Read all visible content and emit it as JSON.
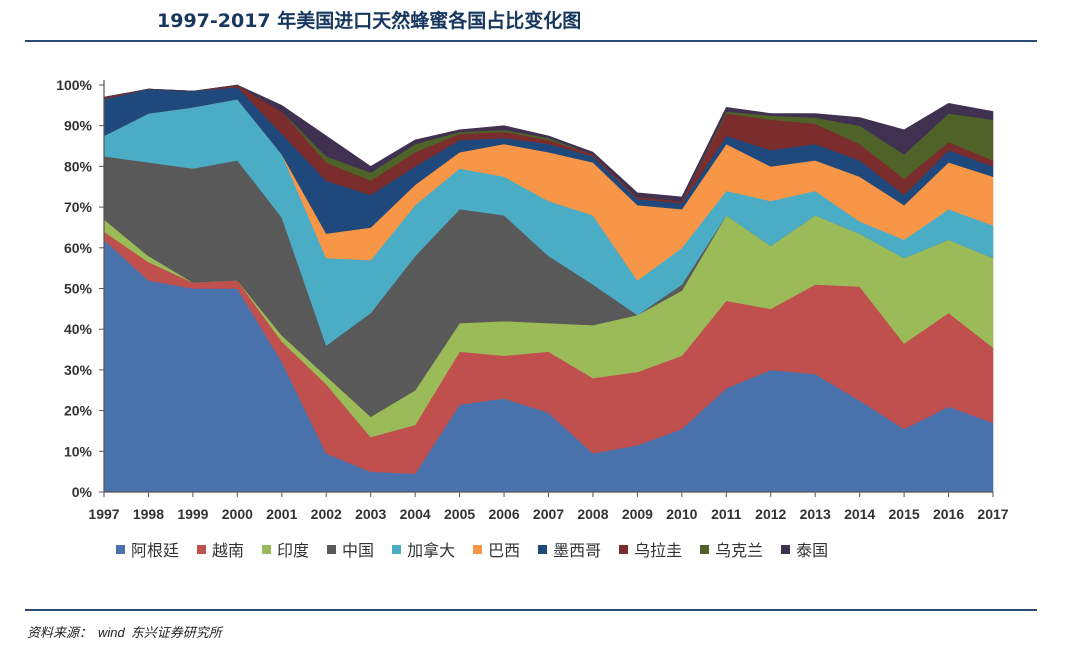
{
  "header": {
    "title": "1997-2017 年美国进口天然蜂蜜各国占比变化图"
  },
  "source": {
    "label": "资料来源：",
    "provider": "wind",
    "org": "东兴证券研究所"
  },
  "chart_data": {
    "type": "area",
    "stacked": true,
    "title": "1997-2017 年美国进口天然蜂蜜各国占比变化图",
    "xlabel": "",
    "ylabel": "",
    "ylim": [
      0,
      100
    ],
    "y_ticks": [
      "0%",
      "10%",
      "20%",
      "30%",
      "40%",
      "50%",
      "60%",
      "70%",
      "80%",
      "90%",
      "100%"
    ],
    "categories": [
      "1997",
      "1998",
      "1999",
      "2000",
      "2001",
      "2002",
      "2003",
      "2004",
      "2005",
      "2006",
      "2007",
      "2008",
      "2009",
      "2010",
      "2011",
      "2012",
      "2013",
      "2014",
      "2015",
      "2016",
      "2017"
    ],
    "legend_position": "bottom",
    "series": [
      {
        "name": "阿根廷",
        "color": "#4a72ad",
        "values": [
          62,
          52,
          50,
          50,
          32,
          9.5,
          5,
          4.5,
          21.5,
          23,
          19.5,
          9.5,
          11.5,
          15.5,
          25.5,
          30,
          29,
          22.5,
          15.5,
          21,
          17
        ]
      },
      {
        "name": "越南",
        "color": "#c0504d",
        "values": [
          2,
          4.5,
          1.5,
          2,
          5,
          17,
          8.5,
          12,
          13,
          10.5,
          15,
          18.5,
          18,
          18,
          21.5,
          15,
          22,
          28,
          21,
          23,
          18.5
        ]
      },
      {
        "name": "印度",
        "color": "#9bbb59",
        "values": [
          3,
          1.5,
          0,
          0,
          1.5,
          2,
          5,
          8.5,
          7,
          8.5,
          7,
          13,
          14,
          16,
          21,
          15.5,
          17,
          13,
          21,
          18,
          22
        ]
      },
      {
        "name": "中国",
        "color": "#595959",
        "values": [
          15.5,
          23,
          28,
          29.5,
          29,
          7.5,
          25.5,
          33,
          28,
          26,
          16.5,
          10,
          0,
          1.5,
          0,
          0,
          0,
          0,
          0,
          0,
          0
        ]
      },
      {
        "name": "加拿大",
        "color": "#4bacc6",
        "values": [
          5,
          12,
          15,
          15,
          15.5,
          21.5,
          13,
          12.5,
          10,
          9.5,
          13.5,
          17,
          8.5,
          9,
          6,
          11,
          6,
          3,
          4.5,
          7.5,
          8
        ]
      },
      {
        "name": "巴西",
        "color": "#f79646",
        "values": [
          0,
          0,
          0,
          0,
          0,
          6,
          8,
          5,
          4,
          8,
          12,
          13,
          18.5,
          9.5,
          11.5,
          8.5,
          7.5,
          11,
          8.5,
          11.5,
          12
        ]
      },
      {
        "name": "墨西哥",
        "color": "#1f497d",
        "values": [
          9,
          6,
          4,
          3,
          5,
          13,
          8,
          4.5,
          3,
          1.5,
          2,
          1.5,
          1.5,
          1.5,
          2,
          4,
          4,
          4,
          2.5,
          3,
          2.5
        ]
      },
      {
        "name": "乌拉圭",
        "color": "#7b2c2c",
        "values": [
          0.5,
          0,
          0,
          0.5,
          5.5,
          4.5,
          3.5,
          3.5,
          1.5,
          1.5,
          1,
          0.5,
          0.5,
          0.5,
          5.5,
          7.5,
          5,
          4,
          4,
          2,
          1.5
        ]
      },
      {
        "name": "乌克兰",
        "color": "#4f6228",
        "values": [
          0,
          0,
          0,
          0,
          0,
          1.5,
          2,
          2,
          0.5,
          0.5,
          0.5,
          0,
          0,
          0,
          0.5,
          1,
          1.5,
          4.5,
          6,
          7,
          10
        ]
      },
      {
        "name": "泰国",
        "color": "#403151",
        "values": [
          0,
          0,
          0,
          0,
          1.5,
          5,
          1.5,
          1,
          0.5,
          1,
          0.5,
          0.5,
          1,
          1,
          1,
          0.5,
          1,
          2,
          6,
          2.5,
          2
        ]
      }
    ]
  }
}
